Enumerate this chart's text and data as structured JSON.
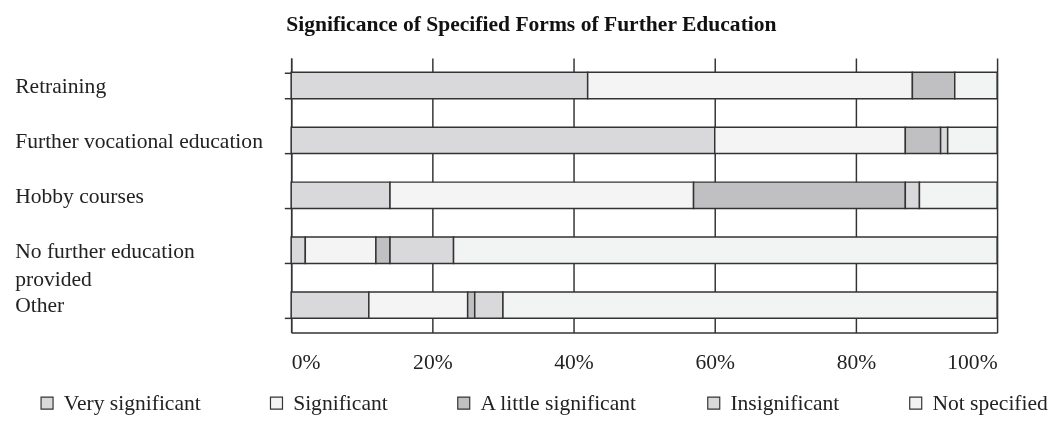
{
  "chart_data": {
    "type": "bar",
    "orientation": "horizontal",
    "stacked": true,
    "title": "Significance of Specified Forms of Further Education",
    "categories": [
      "Retraining",
      "Further vocational education",
      "Hobby courses",
      "No further education provided",
      "Other"
    ],
    "series": [
      {
        "name": "Very significant",
        "color": "#d9d9db",
        "values": [
          42,
          60,
          14,
          2,
          11
        ]
      },
      {
        "name": "Significant",
        "color": "#f4f4f4",
        "values": [
          46,
          27,
          43,
          10,
          14
        ]
      },
      {
        "name": "A little significant",
        "color": "#c0c0c2",
        "values": [
          6,
          5,
          30,
          2,
          1
        ]
      },
      {
        "name": "Insignificant",
        "color": "#d9d9db",
        "values": [
          null,
          1,
          2,
          9,
          4
        ]
      },
      {
        "name": "Not specified",
        "color": "#f2f3f3",
        "values": [
          6,
          7,
          11,
          77,
          70
        ]
      }
    ],
    "xlim": [
      0,
      100
    ],
    "xticks": [
      {
        "value": 0,
        "label": "0%"
      },
      {
        "value": 20,
        "label": "20%"
      },
      {
        "value": 40,
        "label": "40%"
      },
      {
        "value": 60,
        "label": "60%"
      },
      {
        "value": 80,
        "label": "80%"
      },
      {
        "value": 100,
        "label": "100%"
      }
    ],
    "grid": "x",
    "legend": "bottom"
  }
}
